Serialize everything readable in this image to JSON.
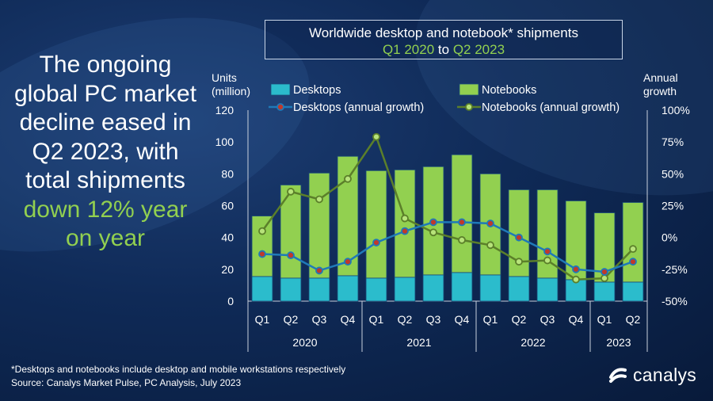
{
  "headline": {
    "part1": "The ongoing global PC market decline eased in Q2 2023, with total shipments",
    "part2": "down 12% year on year"
  },
  "title": {
    "line1": "Worldwide desktop and notebook* shipments",
    "q_start": "Q1 2020",
    "to": "to",
    "q_end": "Q2 2023"
  },
  "footnote": "*Desktops and notebooks  include desktop and mobile workstations respectively",
  "source": "Source: Canalys Market Pulse, PC Analysis, July 2023",
  "logo": {
    "text": "canalys"
  },
  "colors": {
    "desktops": "#2bbccc",
    "notebooks": "#92d050",
    "desktops_growth_line": "#1f7ab8",
    "desktops_growth_marker": "#c0392b",
    "notebooks_growth_line": "#5b7f2a",
    "notebooks_growth_marker": "#b7e37a",
    "headline_accent": "#92d050"
  },
  "chart_data": {
    "type": "bar",
    "stacked": true,
    "categories": [
      "Q1",
      "Q2",
      "Q3",
      "Q4",
      "Q1",
      "Q2",
      "Q3",
      "Q4",
      "Q1",
      "Q2",
      "Q3",
      "Q4",
      "Q1",
      "Q2"
    ],
    "groups": [
      {
        "label": "2020",
        "count": 4
      },
      {
        "label": "2021",
        "count": 4
      },
      {
        "label": "2022",
        "count": 4
      },
      {
        "label": "2023",
        "count": 2
      }
    ],
    "series": [
      {
        "name": "Desktops",
        "kind": "bar",
        "axis": "left",
        "values": [
          15.5,
          14.5,
          14.5,
          16,
          14.5,
          15,
          16.5,
          18,
          16.5,
          15.5,
          14.5,
          13.5,
          12,
          12
        ]
      },
      {
        "name": "Notebooks",
        "kind": "bar",
        "axis": "left",
        "values": [
          38,
          58.5,
          66,
          75,
          67.5,
          67.5,
          68,
          74,
          63.5,
          54.5,
          55.5,
          49.5,
          43.5,
          50
        ]
      },
      {
        "name": "Desktops (annual growth)",
        "kind": "line",
        "axis": "right",
        "values": [
          -13,
          -14,
          -26,
          -19,
          -4,
          5,
          12,
          12,
          11,
          0,
          -11,
          -25,
          -27,
          -19
        ]
      },
      {
        "name": "Notebooks (annual growth)",
        "kind": "line",
        "axis": "right",
        "values": [
          5,
          36,
          30,
          46,
          79,
          15,
          4,
          -2,
          -6,
          -19,
          -18,
          -33,
          -32,
          -9
        ]
      }
    ],
    "ylabel": "Units (million)",
    "ylim": [
      0,
      120
    ],
    "yticks": [
      0,
      20,
      40,
      60,
      80,
      100,
      120
    ],
    "y2label": "Annual growth",
    "y2lim": [
      -50,
      100
    ],
    "y2ticks": [
      "-50%",
      "-25%",
      "0%",
      "25%",
      "50%",
      "75%",
      "100%"
    ],
    "legend": "top",
    "grid": false
  }
}
